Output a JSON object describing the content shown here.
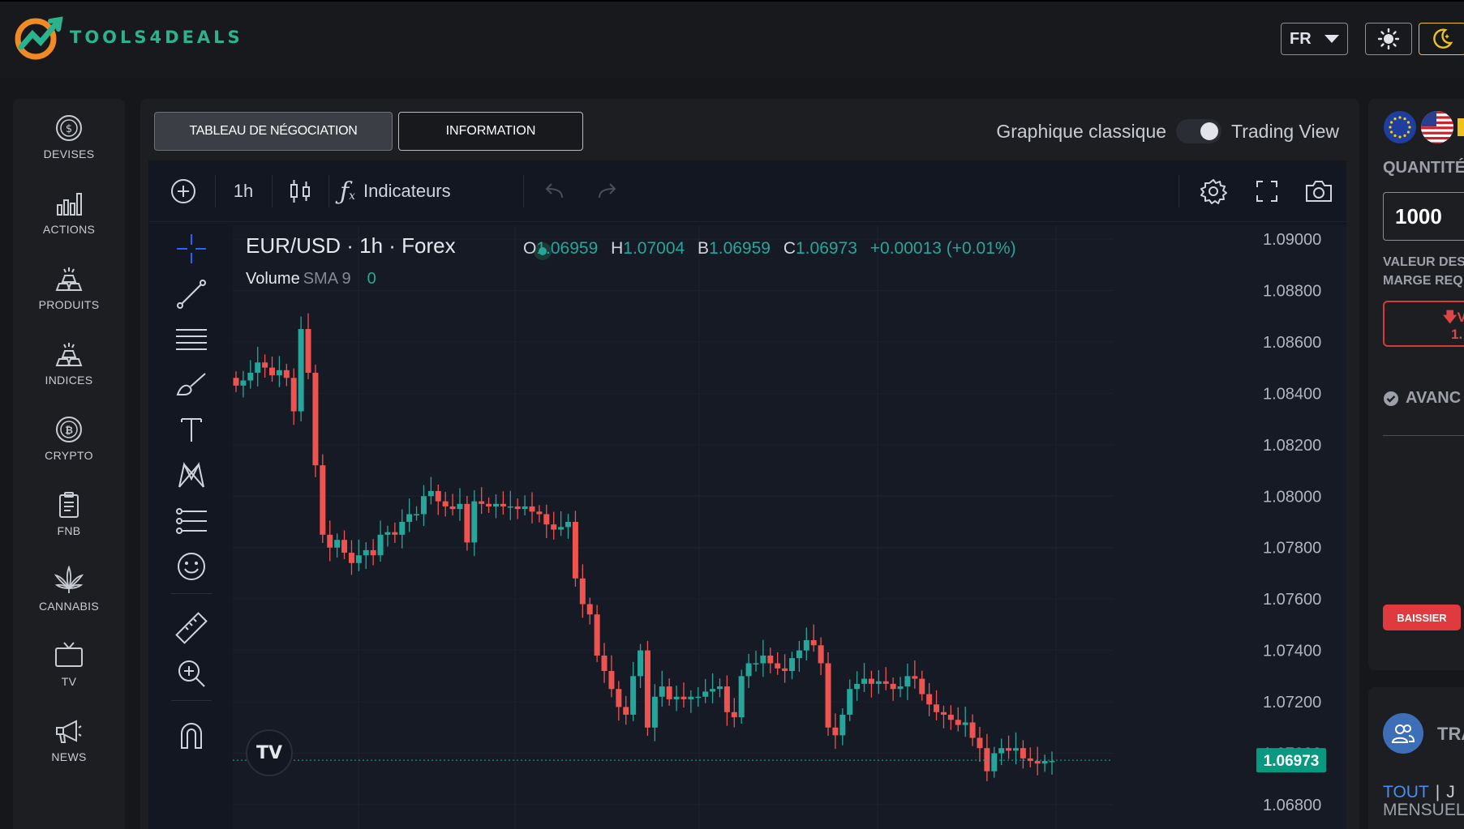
{
  "brand": {
    "name": "TOOLS4DEALS"
  },
  "header": {
    "language": "FR"
  },
  "sidebar": {
    "items": [
      {
        "label": "DEVISES",
        "icon": "dollar-coin-icon"
      },
      {
        "label": "ACTIONS",
        "icon": "bar-chart-icon"
      },
      {
        "label": "PRODUITS",
        "icon": "gold-bars-icon"
      },
      {
        "label": "INDICES",
        "icon": "gold-bars-icon"
      },
      {
        "label": "CRYPTO",
        "icon": "bitcoin-icon"
      },
      {
        "label": "FNB",
        "icon": "clipboard-icon"
      },
      {
        "label": "CANNABIS",
        "icon": "cannabis-leaf-icon"
      },
      {
        "label": "TV",
        "icon": "tv-icon"
      },
      {
        "label": "NEWS",
        "icon": "megaphone-icon"
      }
    ]
  },
  "tabs": {
    "trading": "TABLEAU DE NÉGOCIATION",
    "info": "INFORMATION"
  },
  "chart_mode": {
    "classic": "Graphique classique",
    "tradingview": "Trading View"
  },
  "toolbar": {
    "interval": "1h",
    "indicators": "Indicateurs"
  },
  "legend": {
    "title": "EUR/USD · 1h · Forex",
    "o_label": "O",
    "o": "1.06959",
    "h_label": "H",
    "h": "1.07004",
    "b_label": "B",
    "b": "1.06959",
    "c_label": "C",
    "c": "1.06973",
    "change": "+0.00013 (+0.01%)",
    "volume_label": "Volume",
    "volume_sma": "SMA 9",
    "volume_value": "0"
  },
  "chart_data": {
    "type": "candlestick",
    "symbol": "EUR/USD",
    "interval": "1h",
    "ylim": [
      1.068,
      1.09
    ],
    "yticks": [
      "1.09000",
      "1.08800",
      "1.08600",
      "1.08400",
      "1.08200",
      "1.08000",
      "1.07800",
      "1.07600",
      "1.07400",
      "1.07200",
      "1.07000",
      "1.06800"
    ],
    "last_price": "1.06973",
    "close_series": [
      1.0843,
      1.0845,
      1.0848,
      1.0852,
      1.085,
      1.0847,
      1.0849,
      1.0846,
      1.0833,
      1.0865,
      1.0848,
      1.0812,
      1.0785,
      1.078,
      1.0783,
      1.0778,
      1.0774,
      1.0777,
      1.0779,
      1.0777,
      1.0785,
      1.0786,
      1.0785,
      1.079,
      1.0793,
      1.0793,
      1.08,
      1.0802,
      1.0798,
      1.0796,
      1.0795,
      1.0797,
      1.0782,
      1.0798,
      1.0797,
      1.0796,
      1.0797,
      1.0796,
      1.0796,
      1.0795,
      1.0796,
      1.0794,
      1.0793,
      1.0789,
      1.0787,
      1.0788,
      1.079,
      1.0768,
      1.0758,
      1.0754,
      1.0738,
      1.0732,
      1.0725,
      1.0718,
      1.0715,
      1.073,
      1.074,
      1.071,
      1.0722,
      1.0726,
      1.0721,
      1.0722,
      1.0721,
      1.0722,
      1.0722,
      1.0724,
      1.0725,
      1.0726,
      1.0716,
      1.0714,
      1.073,
      1.0735,
      1.0735,
      1.0738,
      1.0735,
      1.0733,
      1.0732,
      1.0737,
      1.074,
      1.0744,
      1.0742,
      1.0735,
      1.071,
      1.0707,
      1.0715,
      1.0725,
      1.0727,
      1.0729,
      1.0727,
      1.0728,
      1.0727,
      1.0725,
      1.0726,
      1.073,
      1.0729,
      1.0723,
      1.0719,
      1.0716,
      1.0715,
      1.0713,
      1.0711,
      1.0712,
      1.0706,
      1.0702,
      1.0693,
      1.07,
      1.0702,
      1.0701,
      1.0702,
      1.0698,
      1.0697,
      1.0696,
      1.0697,
      1.0697
    ]
  },
  "colors": {
    "up": "#26a69a",
    "down": "#ef5350",
    "accent": "#2bb38d"
  },
  "right_panel": {
    "quantity_label": "QUANTITÉ",
    "quantity_value": "1000",
    "value_label_1": "VALEUR DES",
    "value_label_2": "MARGE REQ",
    "sell_line1": "V",
    "sell_line2": "1.",
    "advanced_label": "AVANC",
    "bear_button": "BAISSIER",
    "traders_label": "TRA",
    "link_all": "TOUT",
    "link_next": "J",
    "monthly_label": "MENSUELL"
  }
}
